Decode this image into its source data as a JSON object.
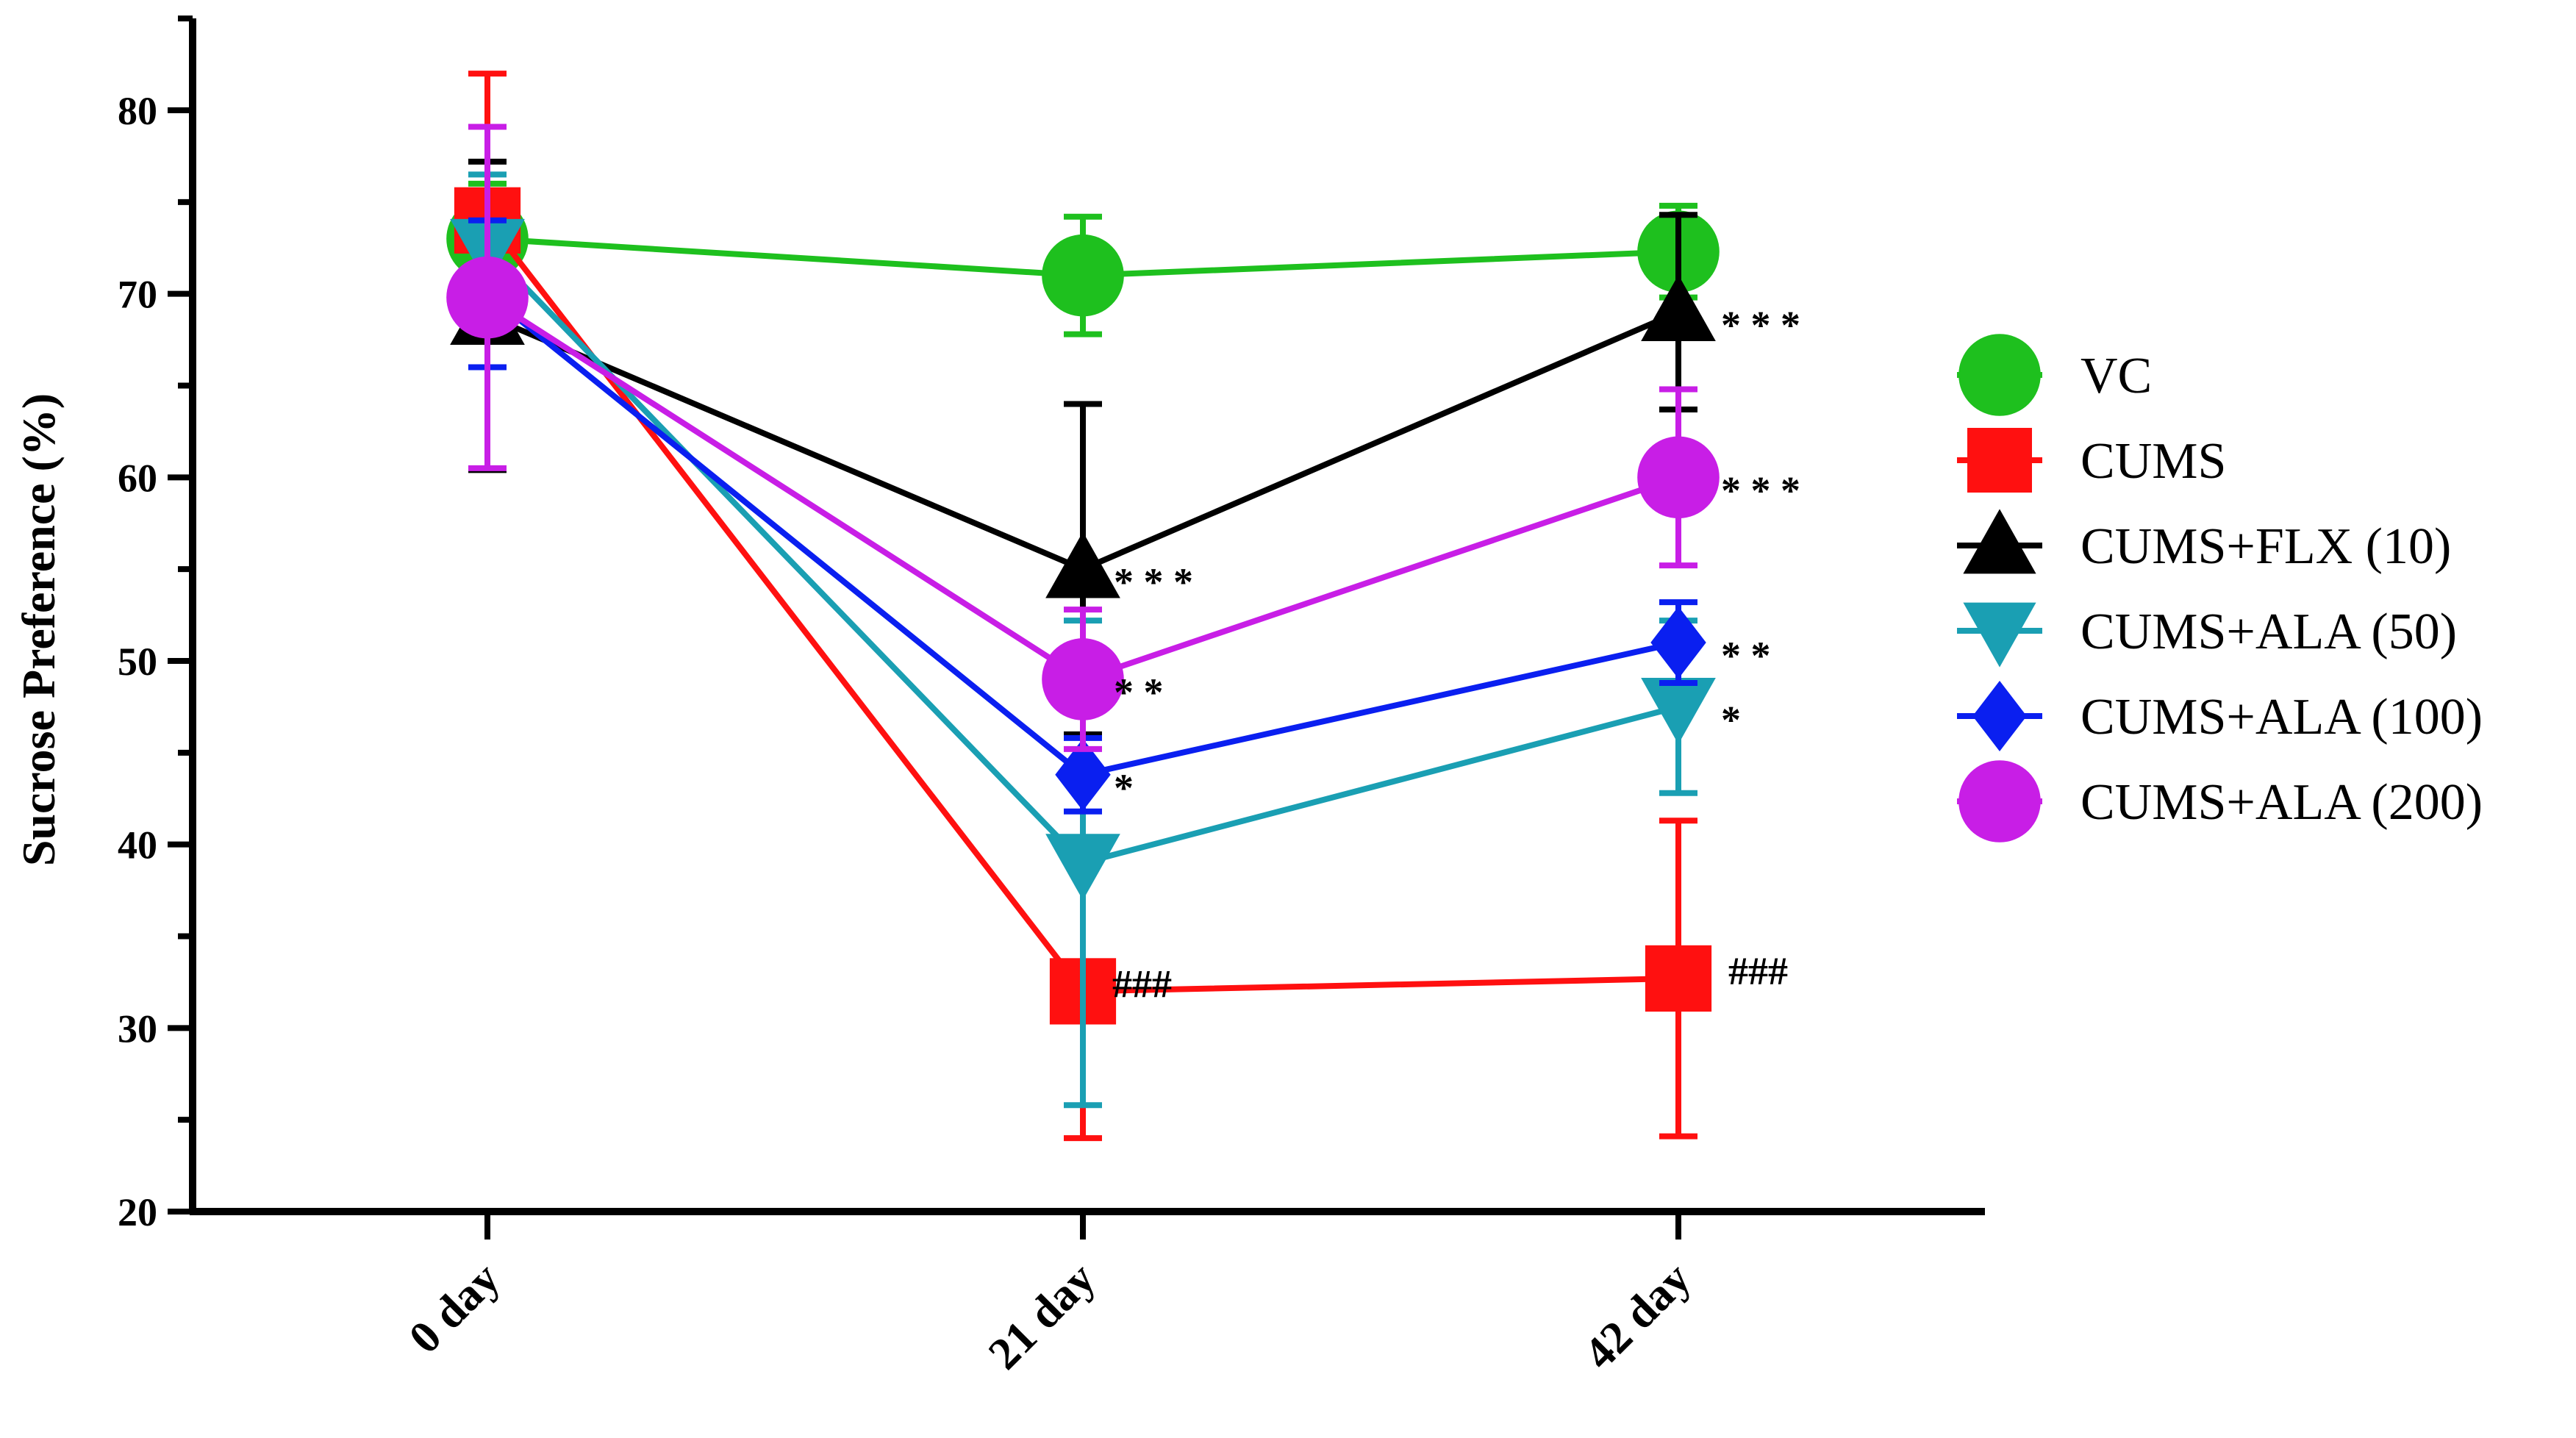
{
  "chart_data": {
    "type": "line",
    "title": "",
    "xlabel": "",
    "ylabel": "Sucrose Preference (%)",
    "categories": [
      "0 day",
      "21 day",
      "42 day"
    ],
    "ylim": [
      20,
      85
    ],
    "yticks": [
      20,
      30,
      40,
      50,
      60,
      70,
      80
    ],
    "grid": false,
    "legend_position": "right",
    "error_bars": "SD",
    "series": [
      {
        "name": "VC",
        "color": "#1ec01e",
        "marker": "circle",
        "values": [
          73.0,
          71.0,
          72.3
        ],
        "errors": [
          3.0,
          3.2,
          2.5
        ]
      },
      {
        "name": "CUMS",
        "color": "#ff1010",
        "marker": "square",
        "values": [
          74.0,
          32.0,
          32.7
        ],
        "errors": [
          8.0,
          8.0,
          8.6
        ]
      },
      {
        "name": "CUMS+FLX (10)",
        "color": "#000000",
        "marker": "triangle-up",
        "values": [
          68.8,
          55.0,
          69.0
        ],
        "errors": [
          8.4,
          9.0,
          5.3
        ]
      },
      {
        "name": "CUMS+ALA (50)",
        "color": "#1a9fb3",
        "marker": "triangle-down",
        "values": [
          72.5,
          39.0,
          47.5
        ],
        "errors": [
          4.0,
          13.2,
          4.7
        ]
      },
      {
        "name": "CUMS+ALA (100)",
        "color": "#0a1ff0",
        "marker": "diamond",
        "values": [
          70.0,
          43.8,
          51.0
        ],
        "errors": [
          4.0,
          2.0,
          2.2
        ]
      },
      {
        "name": "CUMS+ALA (200)",
        "color": "#c81ee6",
        "marker": "circle",
        "values": [
          69.8,
          49.0,
          60.0
        ],
        "errors": [
          9.3,
          3.8,
          4.8
        ]
      }
    ],
    "annotations": [
      {
        "category": "21 day",
        "y": 32.0,
        "text": "###"
      },
      {
        "category": "42 day",
        "y": 32.7,
        "text": "###"
      },
      {
        "category": "21 day",
        "y": 55.0,
        "text": "***"
      },
      {
        "category": "42 day",
        "y": 69.0,
        "text": "***"
      },
      {
        "category": "42 day",
        "y": 60.0,
        "text": "***"
      },
      {
        "category": "21 day",
        "y": 49.0,
        "text": "**"
      },
      {
        "category": "42 day",
        "y": 51.0,
        "text": "**"
      },
      {
        "category": "21 day",
        "y": 43.8,
        "text": "*"
      },
      {
        "category": "42 day",
        "y": 47.5,
        "text": "*"
      }
    ]
  }
}
